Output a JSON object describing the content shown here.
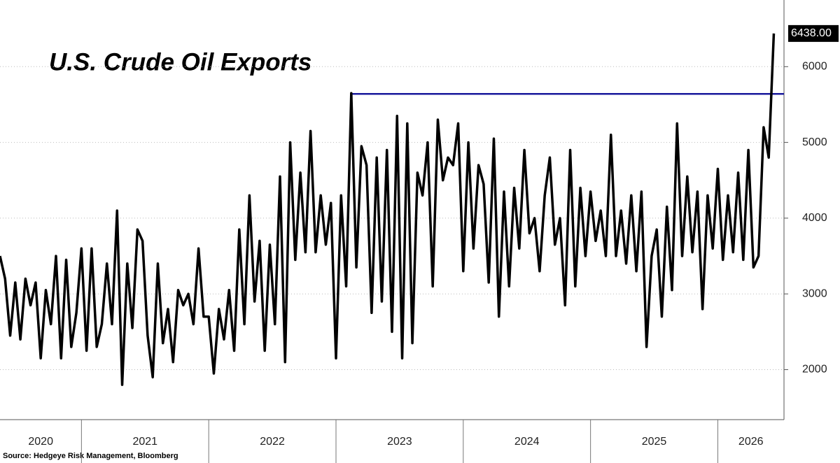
{
  "chart_data": {
    "type": "line",
    "title": "U.S. Crude Oil Exports",
    "source": "Source: Hedgeye Risk Management, Bloomberg",
    "series": [
      {
        "color": "#000000",
        "values": [
          3500,
          3200,
          2450,
          3150,
          2400,
          3200,
          2850,
          3150,
          2150,
          3050,
          2600,
          3500,
          2150,
          3450,
          2300,
          2750,
          3600,
          2250,
          3600,
          2300,
          2600,
          3400,
          2600,
          4100,
          1800,
          3400,
          2550,
          3850,
          3700,
          2450,
          1900,
          3400,
          2350,
          2800,
          2100,
          3050,
          2850,
          3000,
          2600,
          3600,
          2700,
          2700,
          1950,
          2800,
          2400,
          3050,
          2250,
          3850,
          2600,
          4300,
          2900,
          3700,
          2250,
          3650,
          2600,
          4550,
          2100,
          5000,
          3450,
          4600,
          3550,
          5150,
          3550,
          4300,
          3650,
          4200,
          2150,
          4300,
          3100,
          5650,
          3350,
          4950,
          4700,
          2750,
          4800,
          2900,
          4900,
          2500,
          5350,
          2150,
          5250,
          2350,
          4600,
          4300,
          5000,
          3100,
          5300,
          4500,
          4800,
          4700,
          5250,
          3300,
          5000,
          3600,
          4700,
          4450,
          3150,
          5050,
          2700,
          4350,
          3100,
          4400,
          3600,
          4900,
          3800,
          4000,
          3300,
          4300,
          4800,
          3650,
          4000,
          2850,
          4900,
          3100,
          4400,
          3500,
          4350,
          3700,
          4100,
          3500,
          5100,
          3500,
          4100,
          3400,
          4300,
          3300,
          4350,
          2300,
          3500,
          3850,
          2700,
          4150,
          3050,
          5250,
          3500,
          4550,
          3550,
          4350,
          2800,
          4300,
          3600,
          4650,
          3450,
          4300,
          3550,
          4600,
          3450,
          4900,
          3350,
          3500,
          5200,
          4800,
          6438
        ],
        "value_labels": [
          null,
          null,
          null,
          null,
          null,
          null,
          null,
          null,
          null,
          null,
          null,
          null,
          null,
          null,
          null,
          null,
          null,
          null,
          null,
          null,
          null,
          null,
          null,
          null,
          null,
          null,
          null,
          null,
          null,
          null,
          null,
          null,
          null,
          null,
          null,
          null,
          null,
          null,
          null,
          null,
          null,
          null,
          null,
          null,
          null,
          null,
          null,
          null,
          null,
          null,
          null,
          null,
          null,
          null,
          null,
          null,
          null,
          null,
          null,
          null,
          null,
          null,
          null,
          null,
          null,
          null,
          null,
          null,
          null,
          null,
          null,
          null,
          null,
          null,
          null,
          null,
          null,
          null,
          null,
          null,
          null,
          null,
          null,
          null,
          null,
          null,
          null,
          null,
          null,
          null,
          null,
          null,
          null,
          null,
          null,
          null,
          null,
          null,
          null,
          null,
          null,
          null,
          null,
          null,
          null,
          null,
          null,
          null,
          null,
          null,
          null,
          null,
          null,
          null,
          null,
          null,
          null,
          null,
          null,
          null,
          null,
          null,
          null,
          null,
          null,
          null,
          null,
          null,
          null,
          null,
          null,
          null,
          null,
          null,
          null,
          null,
          null,
          null,
          null,
          null,
          null,
          null,
          null,
          null,
          null,
          null,
          null,
          null,
          null,
          null,
          null,
          null,
          "6438.00"
        ]
      }
    ],
    "xlim": [
      0,
      154
    ],
    "xticks": [
      {
        "value": -20,
        "label": "2020"
      },
      {
        "value": 16,
        "label": "2021"
      },
      {
        "value": 41,
        "label": "2022"
      },
      {
        "value": 66,
        "label": "2023"
      },
      {
        "value": 91,
        "label": "2024"
      },
      {
        "value": 116,
        "label": "2025"
      },
      {
        "value": 141,
        "label": "2026"
      }
    ],
    "ylim": [
      1340,
      6880
    ],
    "yticks": [
      2000,
      3000,
      4000,
      5000,
      6000
    ],
    "grid": true,
    "reference_line": {
      "value": 5640,
      "x": 69,
      "color": "#1a1a9c"
    }
  }
}
